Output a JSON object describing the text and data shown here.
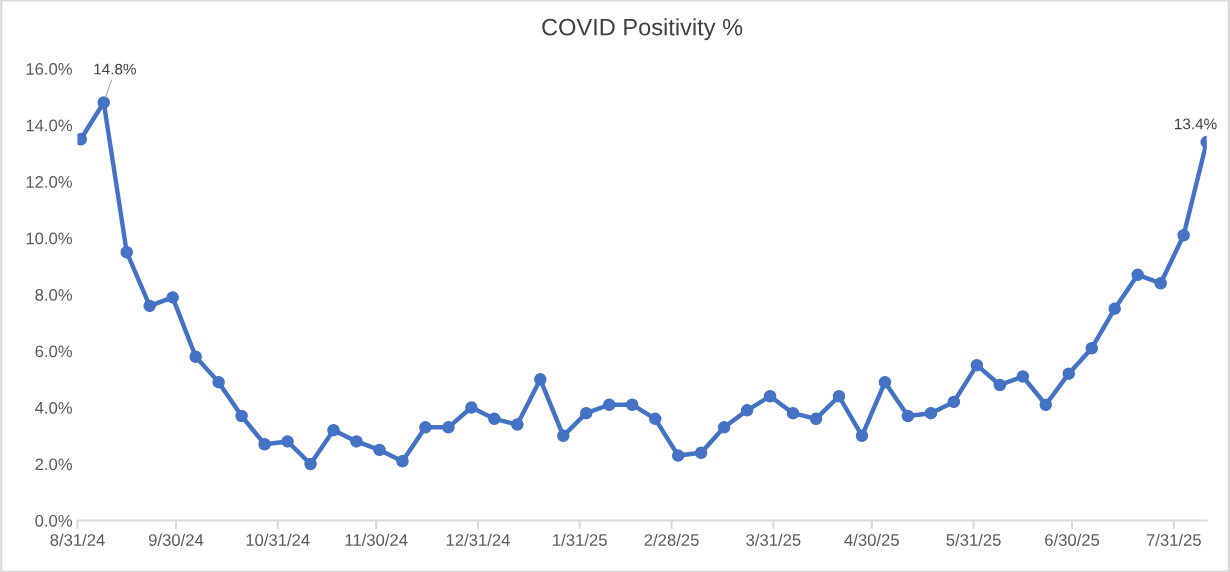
{
  "chart_data": {
    "type": "line",
    "title": "COVID Positivity %",
    "x": [
      "2024-09-01",
      "2024-09-08",
      "2024-09-15",
      "2024-09-22",
      "2024-09-29",
      "2024-10-06",
      "2024-10-13",
      "2024-10-20",
      "2024-10-27",
      "2024-11-03",
      "2024-11-10",
      "2024-11-17",
      "2024-11-24",
      "2024-12-01",
      "2024-12-08",
      "2024-12-15",
      "2024-12-22",
      "2024-12-29",
      "2025-01-05",
      "2025-01-12",
      "2025-01-19",
      "2025-01-26",
      "2025-02-02",
      "2025-02-09",
      "2025-02-16",
      "2025-02-23",
      "2025-03-02",
      "2025-03-09",
      "2025-03-16",
      "2025-03-23",
      "2025-03-30",
      "2025-04-06",
      "2025-04-13",
      "2025-04-20",
      "2025-04-27",
      "2025-05-04",
      "2025-05-11",
      "2025-05-18",
      "2025-05-25",
      "2025-06-01",
      "2025-06-08",
      "2025-06-15",
      "2025-06-22",
      "2025-06-29",
      "2025-07-06",
      "2025-07-13",
      "2025-07-20",
      "2025-07-27",
      "2025-08-03",
      "2025-08-10"
    ],
    "series": [
      {
        "color": "#4472c4",
        "values": [
          13.5,
          14.8,
          9.5,
          7.6,
          7.9,
          5.8,
          4.9,
          3.7,
          2.7,
          2.8,
          2.0,
          3.2,
          2.8,
          2.5,
          2.1,
          3.3,
          3.3,
          4.0,
          3.6,
          3.4,
          5.0,
          3.0,
          3.8,
          4.1,
          4.1,
          3.6,
          2.3,
          2.4,
          3.3,
          3.9,
          4.4,
          3.8,
          3.6,
          4.4,
          3.0,
          4.9,
          3.7,
          3.8,
          4.2,
          5.5,
          4.8,
          5.1,
          4.1,
          5.2,
          6.1,
          7.5,
          8.7,
          8.4,
          10.1,
          13.4
        ],
        "value_labels": [
          null,
          "14.8%",
          null,
          null,
          null,
          null,
          null,
          null,
          null,
          null,
          null,
          null,
          null,
          null,
          null,
          null,
          null,
          null,
          null,
          null,
          null,
          null,
          null,
          null,
          null,
          null,
          null,
          null,
          null,
          null,
          null,
          null,
          null,
          null,
          null,
          null,
          null,
          null,
          null,
          null,
          null,
          null,
          null,
          null,
          null,
          null,
          null,
          null,
          null,
          "13.4%"
        ]
      }
    ],
    "xlim": [
      "2024-08-31",
      "2025-08-10"
    ],
    "xticks": [
      {
        "value": "2024-08-31",
        "label": "8/31/24"
      },
      {
        "value": "2024-09-30",
        "label": "9/30/24"
      },
      {
        "value": "2024-10-31",
        "label": "10/31/24"
      },
      {
        "value": "2024-11-30",
        "label": "11/30/24"
      },
      {
        "value": "2024-12-31",
        "label": "12/31/24"
      },
      {
        "value": "2025-01-31",
        "label": "1/31/25"
      },
      {
        "value": "2025-02-28",
        "label": "2/28/25"
      },
      {
        "value": "2025-03-31",
        "label": "3/31/25"
      },
      {
        "value": "2025-04-30",
        "label": "4/30/25"
      },
      {
        "value": "2025-05-31",
        "label": "5/31/25"
      },
      {
        "value": "2025-06-30",
        "label": "6/30/25"
      },
      {
        "value": "2025-07-31",
        "label": "7/31/25"
      }
    ],
    "ylim": [
      0,
      16
    ],
    "yticks": [
      {
        "value": 0,
        "label": "0.0%"
      },
      {
        "value": 2,
        "label": "2.0%"
      },
      {
        "value": 4,
        "label": "4.0%"
      },
      {
        "value": 6,
        "label": "6.0%"
      },
      {
        "value": 8,
        "label": "8.0%"
      },
      {
        "value": 10,
        "label": "10.0%"
      },
      {
        "value": 12,
        "label": "12.0%"
      },
      {
        "value": 14,
        "label": "14.0%"
      },
      {
        "value": 16,
        "label": "16.0%"
      }
    ],
    "grid": false,
    "marker": "circle",
    "line_style": "solid"
  }
}
